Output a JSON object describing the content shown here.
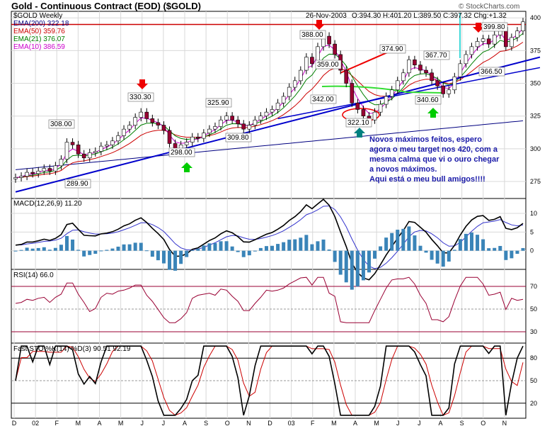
{
  "header": {
    "title": "Gold - Continuous Contract (EOD) ($GOLD)",
    "symbol_line": "$GOLD Weekly",
    "quote_date": "26-Nov-2003",
    "quote": "O:394.30 H:401.20 L:389.50 C:397.32 Chg:+1.32",
    "watermark": "© StockCharts.com"
  },
  "legend": [
    {
      "label": "EMA(200) 322.18",
      "color": "#000080"
    },
    {
      "label": "EMA(50) 359.76",
      "color": "#cc0000"
    },
    {
      "label": "EMA(21) 376.07",
      "color": "#008000"
    },
    {
      "label": "EMA(10) 386.59",
      "color": "#cc00cc"
    }
  ],
  "annotation_text": [
    "Novos máximos feitos, espero",
    "agora o meu target nos 420, com a",
    "mesma calma que vi o ouro chegar",
    "a novos máximos.",
    "Aqui está o meu bull amigos!!!!"
  ],
  "price_labels": [
    "308.00",
    "289.90",
    "330.30",
    "298.00",
    "325.90",
    "309.80",
    "388.00",
    "359.00",
    "342.00",
    "322.10",
    "374.90",
    "367.70",
    "340.60",
    "366.50",
    "399.80"
  ],
  "macd": {
    "label": "MACD(12,26,9) 11.20"
  },
  "rsi": {
    "label": "RSI(14) 66.0"
  },
  "sto": {
    "label": "Fast STO %K(14) %D(3) 90.51 92.19"
  },
  "x_labels": [
    "D",
    "02",
    "F",
    "M",
    "A",
    "M",
    "J",
    "J",
    "A",
    "S",
    "O",
    "N",
    "D",
    "03",
    "F",
    "M",
    "A",
    "M",
    "J",
    "J",
    "A",
    "S",
    "O",
    "N"
  ],
  "chart_data": [
    {
      "type": "candlestick",
      "title": "Gold - Continuous Contract (EOD) ($GOLD)",
      "y_ticks": [
        275,
        300,
        325,
        350,
        375,
        400
      ],
      "ylim": [
        262,
        405
      ],
      "weekly_close": [
        278,
        279,
        282,
        281,
        283,
        285,
        283,
        287,
        292,
        305,
        303,
        296,
        293,
        297,
        298,
        302,
        303,
        306,
        310,
        315,
        318,
        324,
        328,
        323,
        320,
        318,
        314,
        304,
        300,
        303,
        305,
        309,
        308,
        312,
        315,
        317,
        322,
        325,
        322,
        319,
        315,
        318,
        322,
        325,
        328,
        330,
        335,
        340,
        347,
        352,
        360,
        370,
        365,
        378,
        386,
        380,
        372,
        360,
        350,
        335,
        330,
        325,
        322,
        328,
        334,
        340,
        345,
        352,
        358,
        368,
        364,
        360,
        358,
        352,
        348,
        342,
        345,
        355,
        365,
        372,
        378,
        382,
        384,
        380,
        387,
        393,
        378,
        385,
        390,
        397
      ],
      "annotated_levels": [
        308.0,
        289.9,
        330.3,
        298.0,
        325.9,
        309.8,
        388.0,
        359.0,
        342.0,
        322.1,
        374.9,
        367.7,
        340.6,
        366.5,
        399.8
      ]
    },
    {
      "type": "line",
      "name": "MACD(12,26,9)",
      "y_ticks": [
        0,
        5,
        10
      ],
      "ylim": [
        -5,
        14
      ]
    },
    {
      "type": "line",
      "name": "RSI(14)",
      "y_ticks": [
        30,
        50,
        70
      ],
      "ylim": [
        20,
        85
      ]
    },
    {
      "type": "line",
      "name": "Fast STO %K(14) %D(3)",
      "y_ticks": [
        20,
        50,
        80
      ],
      "ylim": [
        0,
        100
      ]
    }
  ]
}
